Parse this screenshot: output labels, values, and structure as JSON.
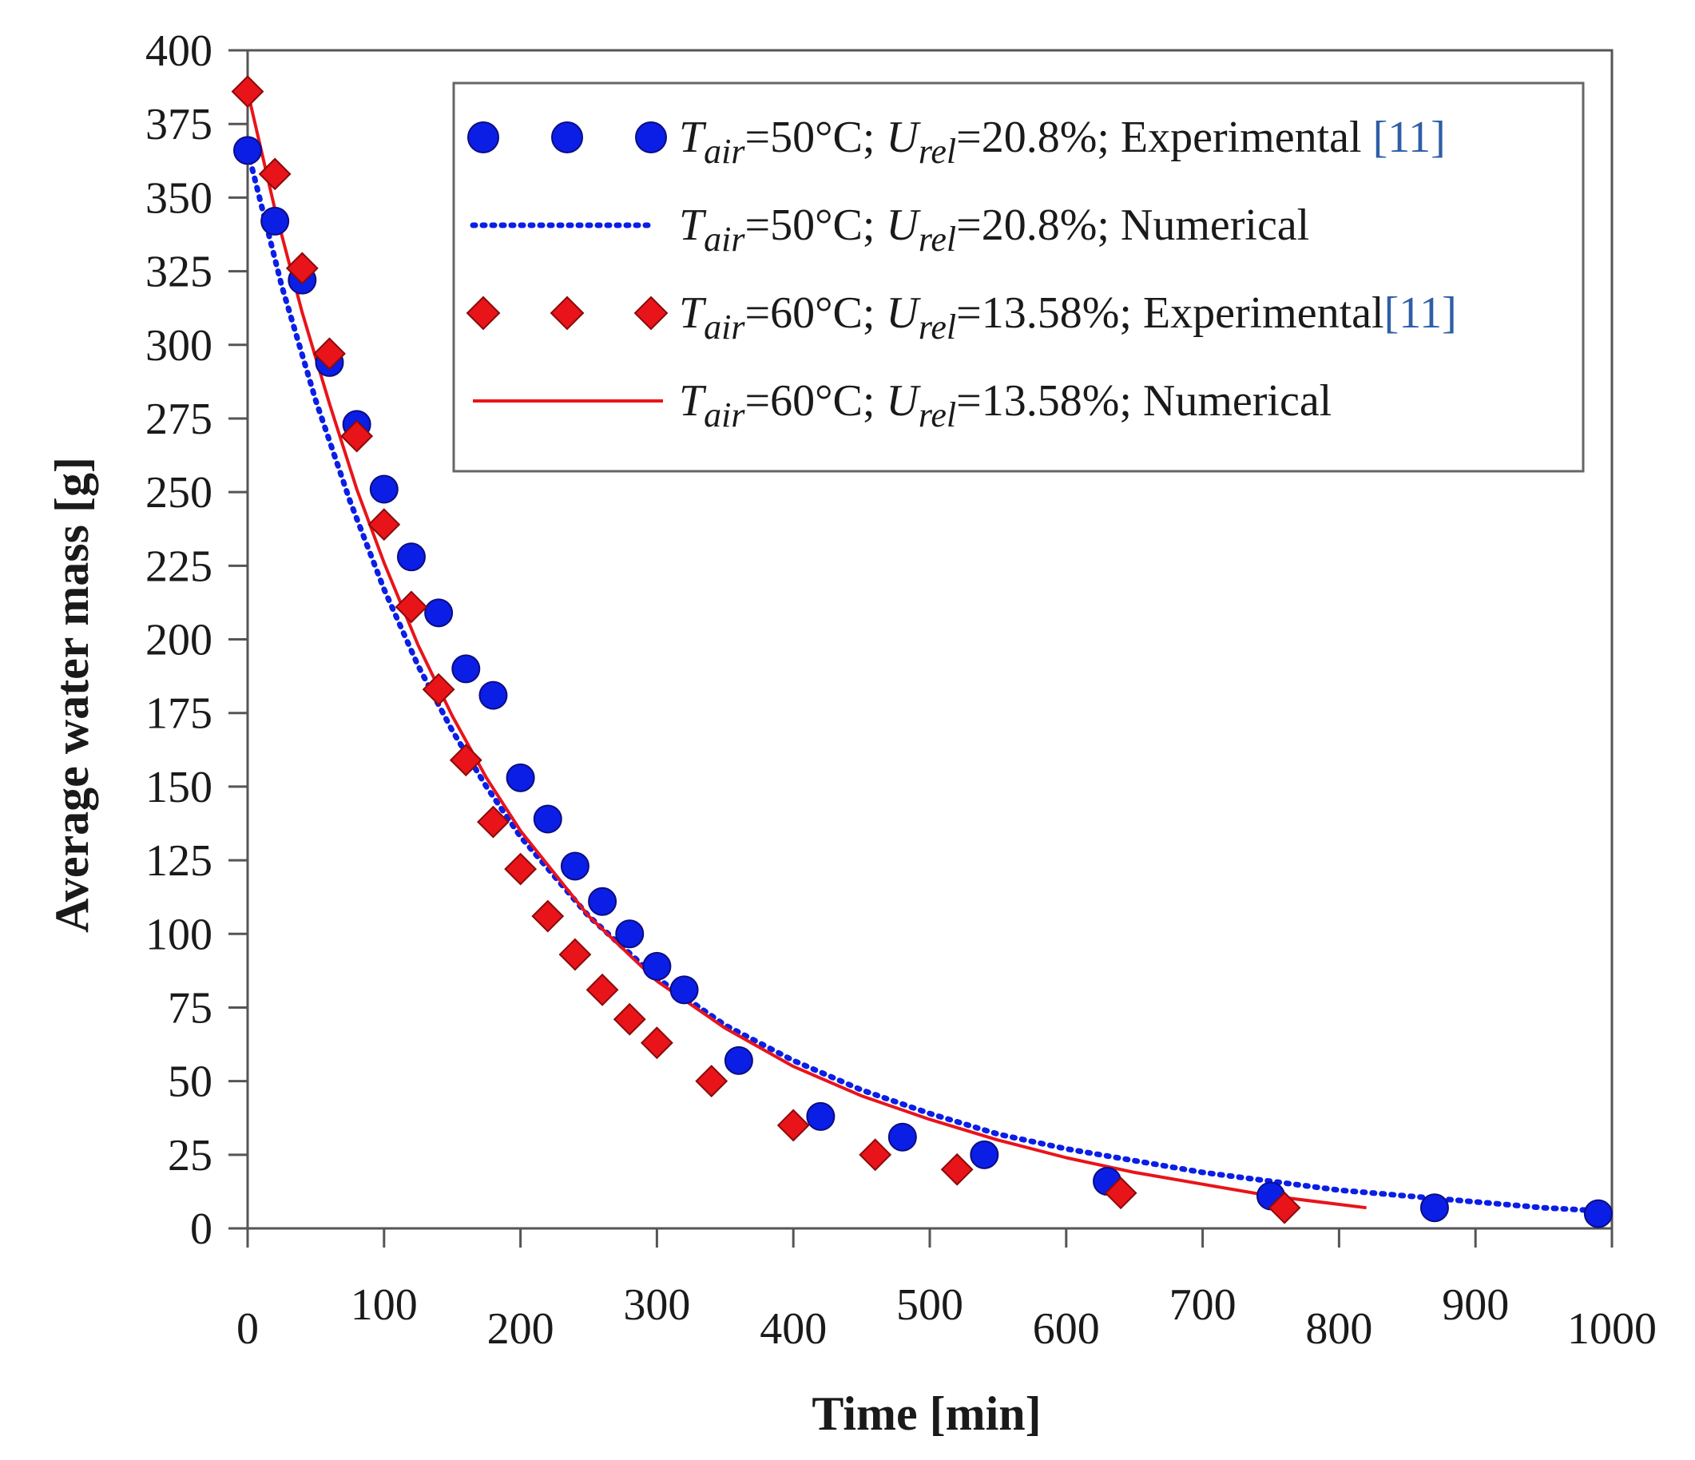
{
  "chart_data": {
    "type": "scatter",
    "xlabel": "Time [min]",
    "ylabel": "Average water mass [g]",
    "xlim": [
      0,
      1000
    ],
    "ylim": [
      0,
      400
    ],
    "x_ticks": [
      "0",
      "100",
      "200",
      "300",
      "400",
      "500",
      "600",
      "700",
      "800",
      "900",
      "1000"
    ],
    "y_ticks": [
      "0",
      "25",
      "50",
      "75",
      "100",
      "125",
      "150",
      "175",
      "200",
      "225",
      "250",
      "275",
      "300",
      "325",
      "350",
      "375",
      "400"
    ],
    "grid": false,
    "legend_position": "top-right",
    "series": [
      {
        "name": "Tair=50°C; Urel=20.8%; Experimental [11]",
        "style": "circle-markers",
        "color": "#0a1ee6",
        "legend": {
          "T": "T",
          "T_sub": "air",
          "mid": "=50°C; ",
          "U": "U",
          "U_sub": "rel",
          "tail": "=20.8%; Experimental",
          "ref": "[11]"
        },
        "x": [
          0,
          20,
          40,
          60,
          80,
          100,
          120,
          140,
          160,
          180,
          200,
          220,
          240,
          260,
          280,
          300,
          320,
          360,
          420,
          480,
          540,
          630,
          750,
          870,
          990
        ],
        "y": [
          366,
          342,
          322,
          294,
          273,
          251,
          228,
          209,
          190,
          181,
          153,
          139,
          123,
          111,
          100,
          89,
          81,
          57,
          38,
          31,
          25,
          16,
          11,
          7,
          5
        ]
      },
      {
        "name": "Tair=50°C; Urel=20.8%; Numerical",
        "style": "dotted-line",
        "color": "#0a1ee6",
        "legend": {
          "T": "T",
          "T_sub": "air",
          "mid": "=50°C; ",
          "U": "U",
          "U_sub": "rel",
          "tail": "=20.8%; Numerical",
          "ref": ""
        },
        "x": [
          0,
          25,
          50,
          75,
          100,
          125,
          150,
          175,
          200,
          250,
          300,
          350,
          400,
          450,
          500,
          550,
          600,
          650,
          700,
          750,
          800,
          850,
          900,
          950,
          990
        ],
        "y": [
          366,
          320,
          281,
          247,
          217,
          191,
          169,
          150,
          133,
          106,
          85,
          69,
          57,
          47,
          39,
          32,
          27,
          23,
          19,
          16,
          13,
          11,
          9,
          7,
          6
        ]
      },
      {
        "name": "Tair=60°C; Urel=13.58%; Experimental [11]",
        "style": "diamond-markers",
        "color": "#e8141a",
        "legend": {
          "T": "T",
          "T_sub": "air",
          "mid": "=60°C; ",
          "U": "U",
          "U_sub": "rel",
          "tail": "=13.58%; Experimental",
          "ref": "[11]"
        },
        "x": [
          0,
          20,
          40,
          60,
          80,
          100,
          120,
          140,
          160,
          180,
          200,
          220,
          240,
          260,
          280,
          300,
          340,
          400,
          460,
          520,
          640,
          760
        ],
        "y": [
          386,
          358,
          326,
          297,
          269,
          239,
          211,
          183,
          159,
          138,
          122,
          106,
          93,
          81,
          71,
          63,
          50,
          35,
          25,
          20,
          12,
          7
        ]
      },
      {
        "name": "Tair=60°C; Urel=13.58%; Numerical",
        "style": "solid-line",
        "color": "#e8141a",
        "legend": {
          "T": "T",
          "T_sub": "air",
          "mid": "=60°C; ",
          "U": "U",
          "U_sub": "rel",
          "tail": "=13.58%; Numerical",
          "ref": ""
        },
        "x": [
          0,
          20,
          40,
          60,
          80,
          100,
          125,
          150,
          175,
          200,
          250,
          300,
          350,
          400,
          450,
          500,
          550,
          600,
          650,
          700,
          750,
          820
        ],
        "y": [
          386,
          346,
          311,
          280,
          251,
          226,
          198,
          174,
          153,
          135,
          106,
          84,
          68,
          55,
          45,
          37,
          30,
          24,
          19,
          15,
          11,
          7
        ]
      }
    ]
  }
}
